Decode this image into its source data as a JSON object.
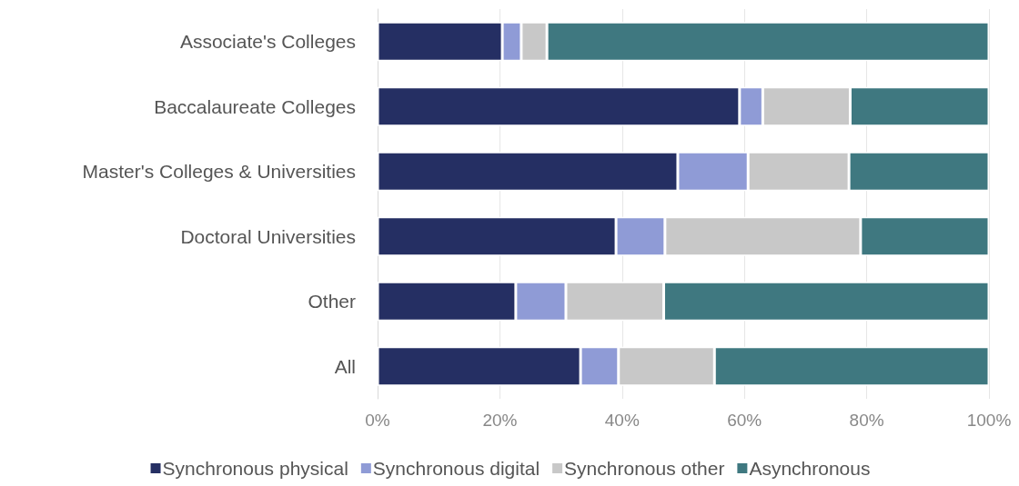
{
  "chart_data": {
    "type": "bar",
    "orientation": "horizontal",
    "stacked": true,
    "categories": [
      "Associate's Colleges",
      "Baccalaureate Colleges",
      "Master's Colleges & Universities",
      "Doctoral Universities",
      "Other",
      "All"
    ],
    "series": [
      {
        "name": "Synchronous physical",
        "color": "#252f63",
        "values": [
          20.4,
          59.2,
          49.1,
          39.0,
          22.6,
          33.2
        ]
      },
      {
        "name": "Synchronous digital",
        "color": "#8f9bd6",
        "values": [
          3.1,
          3.8,
          11.5,
          8.0,
          8.2,
          6.2
        ]
      },
      {
        "name": "Synchronous other",
        "color": "#c8c8c8",
        "values": [
          4.2,
          14.3,
          16.5,
          32.0,
          16.0,
          15.7
        ]
      },
      {
        "name": "Asynchronous",
        "color": "#3f7880",
        "values": [
          72.3,
          22.7,
          22.9,
          21.0,
          53.2,
          44.9
        ]
      }
    ],
    "xlim": [
      0,
      100
    ],
    "xticks": [
      {
        "value": 0,
        "label": "0%"
      },
      {
        "value": 20,
        "label": "20%"
      },
      {
        "value": 40,
        "label": "40%"
      },
      {
        "value": 60,
        "label": "60%"
      },
      {
        "value": 80,
        "label": "80%"
      },
      {
        "value": 100,
        "label": "100%"
      }
    ],
    "grid": "x",
    "legend": "bottom"
  }
}
